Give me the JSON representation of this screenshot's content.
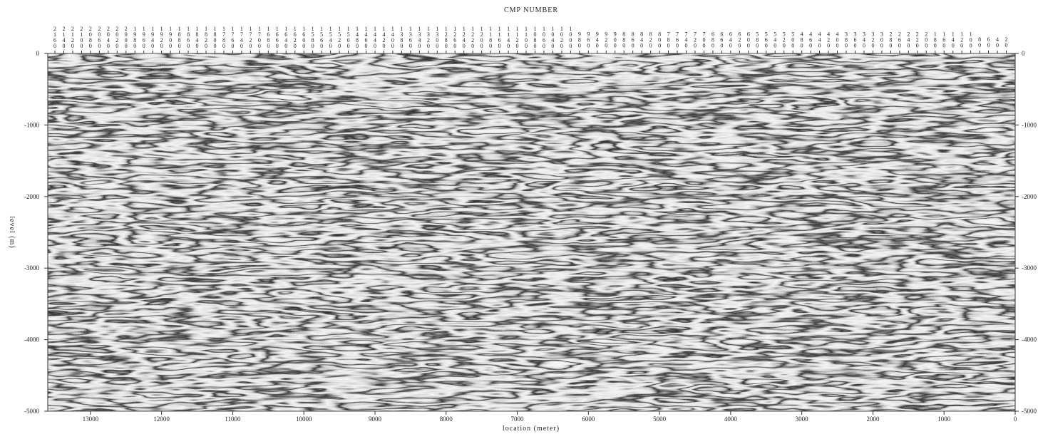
{
  "chart_data": {
    "type": "image",
    "x2label": "CMP NUMBER",
    "xlabel": "location (meter)",
    "ylabel": "level (m)",
    "xlim": [
      13600,
      0
    ],
    "xticks": [
      13000,
      12000,
      11000,
      10000,
      9000,
      8000,
      7000,
      6000,
      5000,
      4000,
      3000,
      2000,
      1000,
      0
    ],
    "x2lim": [
      2176,
      0
    ],
    "x2ticks": [
      2160,
      2140,
      2120,
      2100,
      2080,
      2060,
      2040,
      2020,
      2000,
      1980,
      1960,
      1940,
      1920,
      1900,
      1880,
      1860,
      1840,
      1820,
      1800,
      1780,
      1760,
      1740,
      1720,
      1700,
      1680,
      1660,
      1640,
      1620,
      1600,
      1580,
      1560,
      1540,
      1520,
      1500,
      1480,
      1460,
      1440,
      1420,
      1400,
      1380,
      1360,
      1340,
      1320,
      1300,
      1280,
      1260,
      1240,
      1220,
      1200,
      1180,
      1160,
      1140,
      1120,
      1100,
      1080,
      1060,
      1040,
      1020,
      1000,
      980,
      960,
      940,
      920,
      900,
      880,
      860,
      840,
      820,
      800,
      780,
      760,
      740,
      720,
      700,
      680,
      660,
      640,
      620,
      600,
      580,
      560,
      540,
      520,
      500,
      480,
      460,
      440,
      420,
      400,
      380,
      360,
      340,
      320,
      300,
      280,
      260,
      240,
      220,
      200,
      180,
      160,
      140,
      120,
      100,
      80,
      60,
      40,
      20
    ],
    "ylim": [
      -5000,
      0
    ],
    "yticks": [
      0,
      -1000,
      -2000,
      -3000,
      -4000,
      -5000
    ],
    "grid": true
  }
}
